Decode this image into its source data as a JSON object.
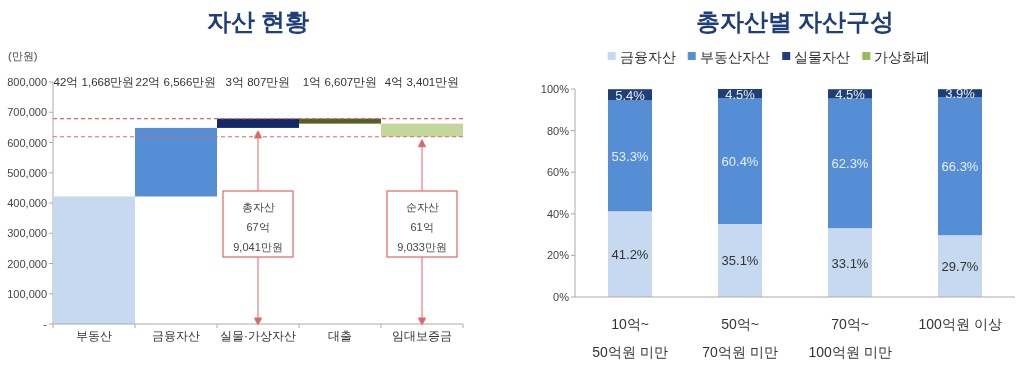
{
  "chart_data": [
    {
      "type": "bar",
      "title": "자산 현황",
      "ylabel": "(만원)",
      "categories": [
        "부동산",
        "금융자산",
        "실물·가상자산",
        "대출",
        "임대보증금"
      ],
      "values": [
        421668,
        226566,
        30807,
        -16607,
        -43401
      ],
      "base": [
        0,
        421668,
        648234,
        679041,
        662434
      ],
      "colors": [
        "#c6d9f1",
        "#558ed5",
        "#0f2a66",
        "#4f6228",
        "#c3d69b"
      ],
      "ylim": [
        0,
        800000
      ],
      "yticks": [
        {
          "value": 0,
          "label": "-"
        },
        {
          "value": 100000,
          "label": "100,000"
        },
        {
          "value": 200000,
          "label": "200,000"
        },
        {
          "value": 300000,
          "label": "300,000"
        },
        {
          "value": 400000,
          "label": "400,000"
        },
        {
          "value": 500000,
          "label": "500,000"
        },
        {
          "value": 600000,
          "label": "600,000"
        },
        {
          "value": 700000,
          "label": "700,000"
        },
        {
          "value": 800000,
          "label": "800,000"
        }
      ],
      "ref_lines": [
        {
          "axis": "y",
          "value": 679041,
          "color": "#e06666",
          "line_style": "dashed"
        },
        {
          "axis": "y",
          "value": 619033,
          "color": "#e06666",
          "line_style": "dashed"
        }
      ],
      "annotations": [
        "42억 1,668만원",
        "22억 6,566만원",
        "3억 807만원",
        "1억 6,607만원",
        "4억 3,401만원",
        "총자산\n67억\n9,041만원",
        "순자산\n61억\n9,033만원"
      ]
    },
    {
      "type": "bar",
      "title": "총자산별 자산구성",
      "stacked": true,
      "legend": "top",
      "categories": [
        "10억~\n50억원 미만",
        "50억~\n70억원 미만",
        "70억~\n100억원 미만",
        "100억원 이상"
      ],
      "series": [
        {
          "name": "금융자산",
          "color": "#c6d9f1",
          "values": [
            41.2,
            35.1,
            33.1,
            29.7
          ],
          "value_labels": [
            "41.2%",
            "35.1%",
            "33.1%",
            "29.7%"
          ]
        },
        {
          "name": "부동산자산",
          "color": "#558ed5",
          "values": [
            53.3,
            60.4,
            62.3,
            66.3
          ],
          "value_labels": [
            "53.3%",
            "60.4%",
            "62.3%",
            "66.3%"
          ]
        },
        {
          "name": "실물자산",
          "color": "#1f3f7a",
          "values": [
            5.4,
            4.5,
            4.5,
            3.9
          ],
          "value_labels": [
            "5.4%",
            "4.5%",
            "4.5%",
            "3.9%"
          ]
        },
        {
          "name": "가상화폐",
          "color": "#9bbb59",
          "values": [
            null,
            null,
            null,
            null
          ]
        }
      ],
      "ylim": [
        0,
        100
      ],
      "yticks": [
        {
          "value": 0,
          "label": "0%"
        },
        {
          "value": 20,
          "label": "20%"
        },
        {
          "value": 40,
          "label": "40%"
        },
        {
          "value": 60,
          "label": "60%"
        },
        {
          "value": 80,
          "label": "80%"
        },
        {
          "value": 100,
          "label": "100%"
        }
      ]
    }
  ]
}
